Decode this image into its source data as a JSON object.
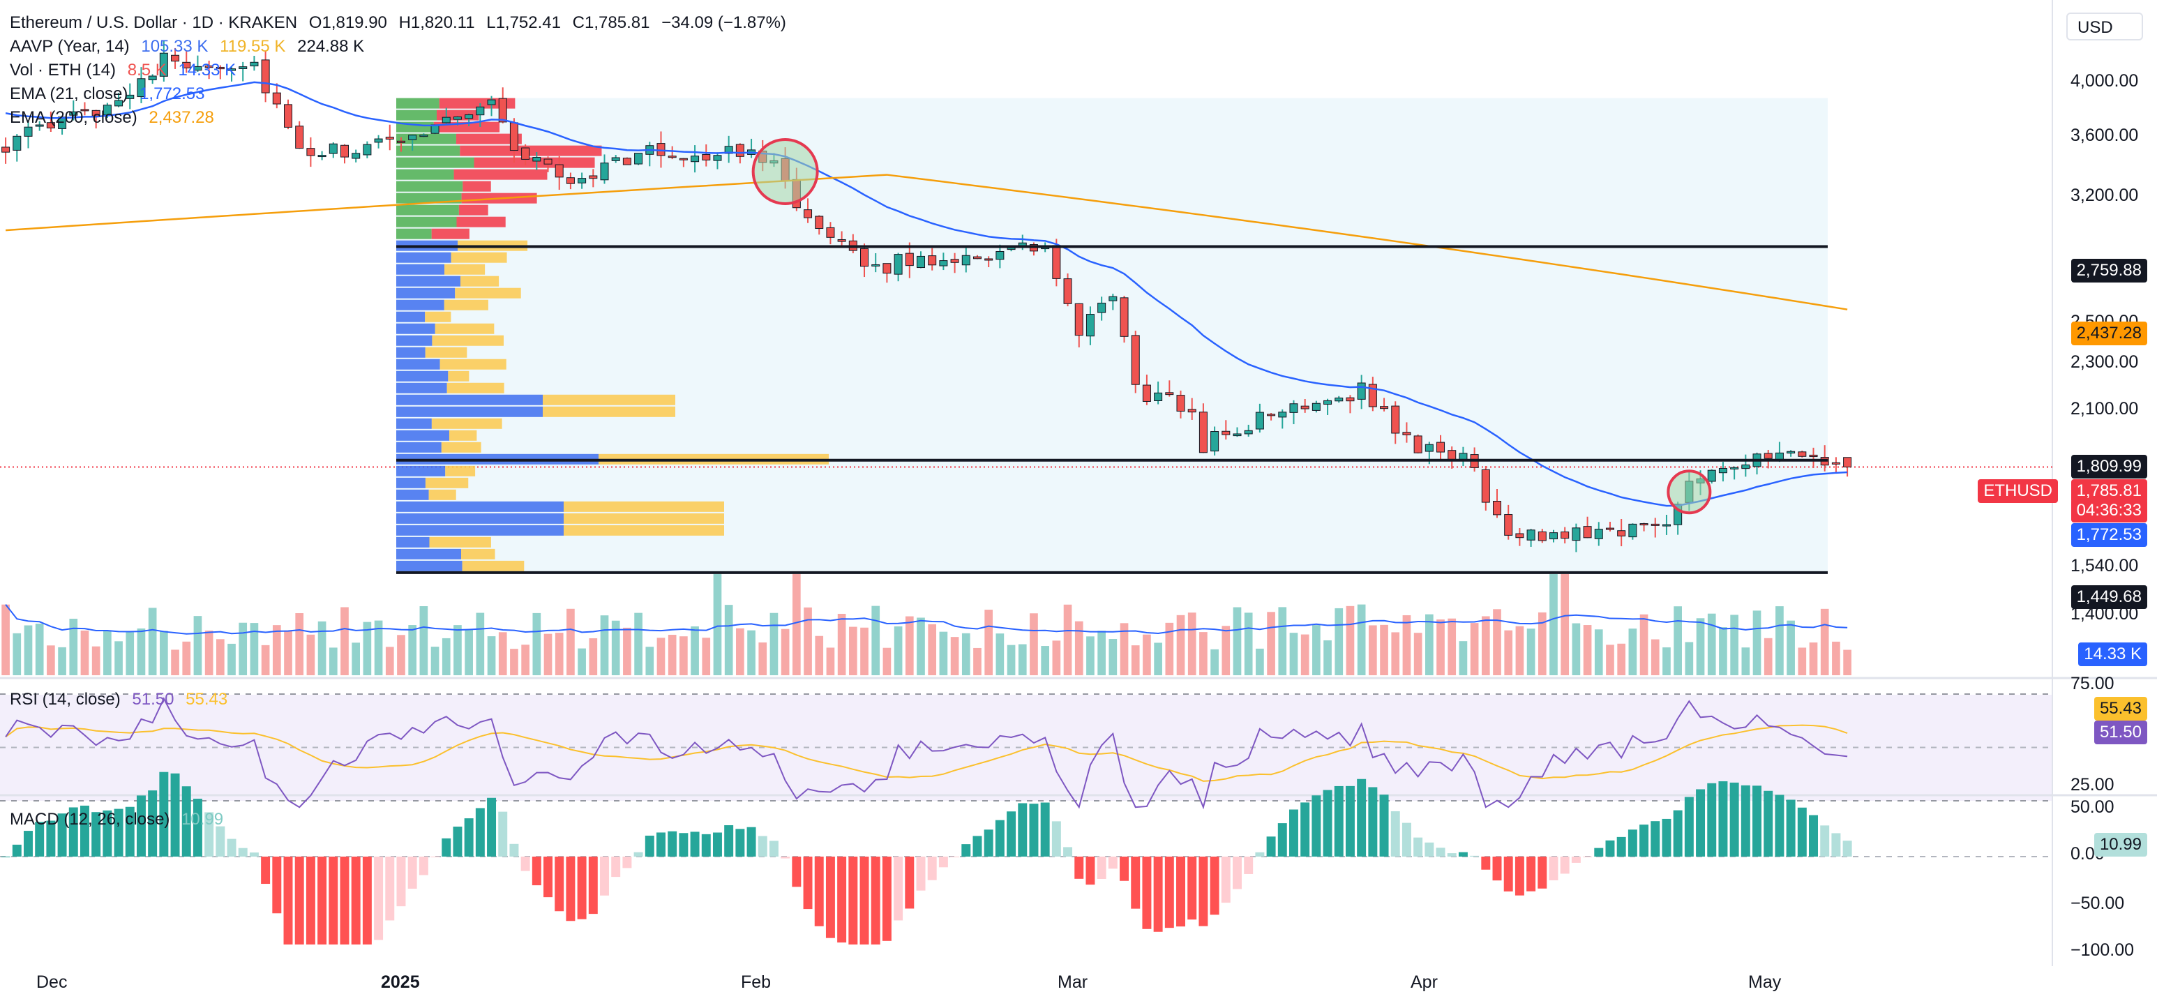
{
  "header": {
    "symbol_line": "Ethereum / U.S. Dollar · 1D · KRAKEN",
    "open": "O1,819.90",
    "high": "H1,820.11",
    "low": "L1,752.41",
    "close": "C1,785.81",
    "change": "−34.09 (−1.87%)",
    "currency": "USD"
  },
  "indicators": {
    "aavp": {
      "label": "AAVP (Year, 14)",
      "v1": "105.33 K",
      "v2": "119.55 K",
      "v3": "224.88 K"
    },
    "vol": {
      "label": "Vol · ETH (14)",
      "v1": "8.5 K",
      "v2": "14.33 K"
    },
    "ema21": {
      "label": "EMA (21, close)",
      "value": "1,772.53"
    },
    "ema200": {
      "label": "EMA (200, close)",
      "value": "2,437.28"
    },
    "rsi": {
      "label": "RSI (14, close)",
      "v1": "51.50",
      "v2": "55.43"
    },
    "macd": {
      "label": "MACD (12, 26, close)",
      "value": "10.99"
    }
  },
  "price_axis": {
    "ticks": [
      "4,000.00",
      "3,600.00",
      "3,200.00",
      "2,500.00",
      "2,300.00",
      "2,100.00",
      "1,540.00",
      "1,400.00"
    ],
    "tick_values": [
      4000,
      3600,
      3200,
      2500,
      2300,
      2100,
      1540,
      1400
    ],
    "labels": {
      "level_high": "2,759.88",
      "ema200": "2,437.28",
      "level_mid": "1,809.99",
      "symbol": "ETHUSD",
      "last_price": "1,785.81",
      "countdown": "04:36:33",
      "ema21": "1,772.53",
      "level_low": "1,449.68",
      "vol_ma": "14.33 K"
    }
  },
  "rsi_axis": {
    "ticks": [
      "75.00",
      "25.00"
    ],
    "v2": "55.43",
    "v1": "51.50"
  },
  "macd_axis": {
    "ticks": [
      "50.00",
      "0.00",
      "−50.00",
      "−100.00"
    ],
    "value": "10.99"
  },
  "time_axis": [
    "Dec",
    "2025",
    "Feb",
    "Mar",
    "Apr",
    "May"
  ],
  "colors": {
    "up": "#26a69a",
    "down": "#ef5350",
    "ema21": "#2962ff",
    "ema200": "#f59e0b",
    "vp_up": "#4caf50",
    "vp_down": "#f23645",
    "vp_blue": "#3d6eef",
    "vp_yellow": "#fcc94d",
    "rsi": "#7e57c2",
    "rsi_ma": "#fbc02d",
    "circle_red": "#e53950",
    "circle_fill": "#a5d6a7"
  },
  "chart_data": {
    "type": "candlestick",
    "symbol": "ETHUSD",
    "timeframe": "1D",
    "x_start": "2024-11-24",
    "x_end": "2025-05-06",
    "ylim_log": [
      1300,
      4250
    ],
    "levels": [
      2759.88,
      1809.99,
      1449.68
    ],
    "anchors": [
      [
        "2024-11-24",
        3380
      ],
      [
        "2024-12-03",
        3650
      ],
      [
        "2024-12-08",
        3980
      ],
      [
        "2024-12-16",
        3950
      ],
      [
        "2024-12-20",
        3300
      ],
      [
        "2024-12-27",
        3360
      ],
      [
        "2025-01-06",
        3680
      ],
      [
        "2025-01-08",
        3350
      ],
      [
        "2025-01-13",
        3140
      ],
      [
        "2025-01-19",
        3320
      ],
      [
        "2025-01-26",
        3310
      ],
      [
        "2025-01-31",
        3310
      ],
      [
        "2025-02-03",
        2880
      ],
      [
        "2025-02-08",
        2650
      ],
      [
        "2025-02-15",
        2700
      ],
      [
        "2025-02-24",
        2750
      ],
      [
        "2025-02-27",
        2300
      ],
      [
        "2025-03-02",
        2520
      ],
      [
        "2025-03-04",
        2080
      ],
      [
        "2025-03-09",
        1990
      ],
      [
        "2025-03-10",
        1870
      ],
      [
        "2025-03-19",
        2030
      ],
      [
        "2025-03-24",
        2080
      ],
      [
        "2025-03-29",
        1840
      ],
      [
        "2025-04-02",
        1830
      ],
      [
        "2025-04-06",
        1550
      ],
      [
        "2025-04-09",
        1560
      ],
      [
        "2025-04-11",
        1570
      ],
      [
        "2025-04-20",
        1590
      ],
      [
        "2025-04-22",
        1760
      ],
      [
        "2025-04-26",
        1800
      ],
      [
        "2025-05-01",
        1820
      ],
      [
        "2025-05-05",
        1800
      ],
      [
        "2025-05-06",
        1785.81
      ]
    ],
    "ema200_anchors": [
      [
        "2024-11-24",
        2850
      ],
      [
        "2025-02-10",
        3180
      ],
      [
        "2025-03-20",
        2850
      ],
      [
        "2025-05-06",
        2437.28
      ]
    ],
    "last": {
      "open": 1819.9,
      "high": 1820.11,
      "low": 1752.41,
      "close": 1785.81
    }
  }
}
